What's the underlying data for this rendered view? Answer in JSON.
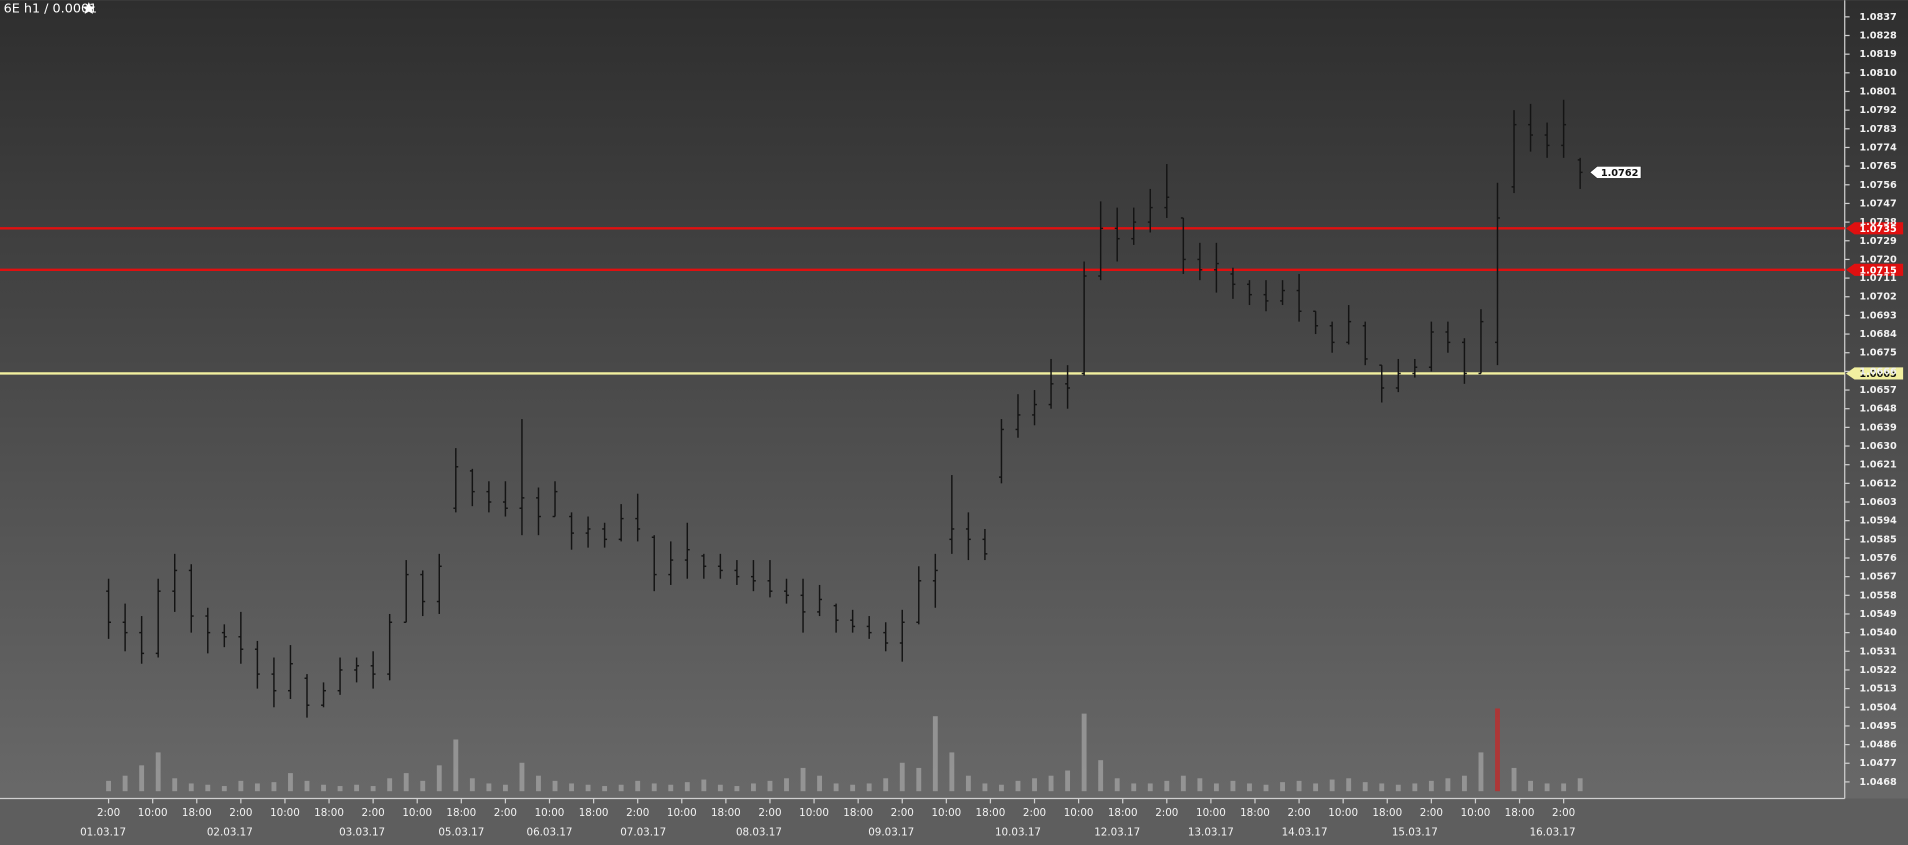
{
  "chart_data": {
    "type": "ohlc",
    "title": "6E h1 / 0.0001",
    "xlim": [
      -17.7,
      317
    ],
    "ylim": [
      1.046,
      1.0845
    ],
    "yticks": [
      1.0837,
      1.0828,
      1.0819,
      {
        "value": 1.081,
        "label": "1.0810"
      },
      1.0801,
      1.0792,
      1.0783,
      1.0774,
      1.0765,
      1.0756,
      1.0747,
      1.0738,
      1.0729,
      {
        "value": 1.072,
        "label": "1.0720"
      },
      1.0711,
      1.0702,
      1.0693,
      1.0684,
      1.0675,
      1.0666,
      1.0657,
      1.0648,
      1.0639,
      {
        "value": 1.063,
        "label": "1.0630"
      },
      1.0621,
      1.0612,
      1.0603,
      1.0594,
      1.0585,
      1.0576,
      1.0567,
      1.0558,
      1.0549,
      {
        "value": 1.054,
        "label": "1.0540"
      },
      1.0531,
      1.0522,
      1.0513,
      1.0504,
      1.0495,
      1.0486,
      1.0477,
      1.0468
    ],
    "xticks": [
      {
        "value": 2,
        "label": "2:00"
      },
      {
        "value": 10,
        "label": "10:00"
      },
      {
        "value": 18,
        "label": "18:00"
      },
      {
        "value": 26,
        "label": "2:00"
      },
      {
        "value": 34,
        "label": "10:00"
      },
      {
        "value": 42,
        "label": "18:00"
      },
      {
        "value": 50,
        "label": "2:00"
      },
      {
        "value": 58,
        "label": "10:00"
      },
      {
        "value": 66,
        "label": "18:00"
      },
      {
        "value": 74,
        "label": "2:00"
      },
      {
        "value": 82,
        "label": "10:00"
      },
      {
        "value": 90,
        "label": "18:00"
      },
      {
        "value": 98,
        "label": "2:00"
      },
      {
        "value": 106,
        "label": "10:00"
      },
      {
        "value": 114,
        "label": "18:00"
      },
      {
        "value": 122,
        "label": "2:00"
      },
      {
        "value": 130,
        "label": "10:00"
      },
      {
        "value": 138,
        "label": "18:00"
      },
      {
        "value": 146,
        "label": "2:00"
      },
      {
        "value": 154,
        "label": "10:00"
      },
      {
        "value": 162,
        "label": "18:00"
      },
      {
        "value": 170,
        "label": "2:00"
      },
      {
        "value": 178,
        "label": "10:00"
      },
      {
        "value": 186,
        "label": "18:00"
      },
      {
        "value": 194,
        "label": "2:00"
      },
      {
        "value": 202,
        "label": "10:00"
      },
      {
        "value": 210,
        "label": "18:00"
      },
      {
        "value": 218,
        "label": "2:00"
      },
      {
        "value": 226,
        "label": "10:00"
      },
      {
        "value": 234,
        "label": "18:00"
      },
      {
        "value": 242,
        "label": "2:00"
      },
      {
        "value": 250,
        "label": "10:00"
      },
      {
        "value": 258,
        "label": "18:00"
      },
      {
        "value": 266,
        "label": "2:00"
      }
    ],
    "date_ticks": [
      {
        "value": 1,
        "label": "01.03.17"
      },
      {
        "value": 24,
        "label": "02.03.17"
      },
      {
        "value": 48,
        "label": "03.03.17"
      },
      {
        "value": 66,
        "label": "05.03.17"
      },
      {
        "value": 82,
        "label": "06.03.17"
      },
      {
        "value": 99,
        "label": "07.03.17"
      },
      {
        "value": 120,
        "label": "08.03.17"
      },
      {
        "value": 144,
        "label": "09.03.17"
      },
      {
        "value": 167,
        "label": "10.03.17"
      },
      {
        "value": 185,
        "label": "12.03.17"
      },
      {
        "value": 202,
        "label": "13.03.17"
      },
      {
        "value": 219,
        "label": "14.03.17"
      },
      {
        "value": 239,
        "label": "15.03.17"
      },
      {
        "value": 264,
        "label": "16.03.17"
      }
    ],
    "bar_color": "#141414",
    "x": [
      2,
      5,
      8,
      11,
      14,
      17,
      20,
      23,
      26,
      29,
      32,
      35,
      38,
      41,
      44,
      47,
      50,
      53,
      56,
      59,
      62,
      65,
      68,
      71,
      74,
      77,
      80,
      83,
      86,
      89,
      92,
      95,
      98,
      101,
      104,
      107,
      110,
      113,
      116,
      119,
      122,
      125,
      128,
      131,
      134,
      137,
      140,
      143,
      146,
      149,
      152,
      155,
      158,
      161,
      164,
      167,
      170,
      173,
      176,
      179,
      182,
      185,
      188,
      191,
      194,
      197,
      200,
      203,
      206,
      209,
      212,
      215,
      218,
      221,
      224,
      227,
      230,
      233,
      236,
      239,
      242,
      245,
      248,
      251,
      254,
      257,
      260,
      263,
      266,
      269
    ],
    "open": [
      1.056,
      1.0545,
      1.054,
      1.053,
      1.056,
      1.057,
      1.0548,
      1.054,
      1.0538,
      1.0532,
      1.052,
      1.0512,
      1.0518,
      1.0505,
      1.0512,
      1.0522,
      1.0524,
      1.052,
      1.0545,
      1.0568,
      1.0555,
      1.06,
      1.0618,
      1.0608,
      1.0603,
      1.06,
      1.0605,
      1.0596,
      1.0596,
      1.0588,
      1.059,
      1.0585,
      1.0595,
      1.0586,
      1.0568,
      1.0575,
      1.0577,
      1.0572,
      1.057,
      1.0567,
      1.0565,
      1.056,
      1.0558,
      1.055,
      1.0553,
      1.0546,
      1.0543,
      1.054,
      1.0535,
      1.0545,
      1.0565,
      1.0585,
      1.059,
      1.0585,
      1.0615,
      1.0638,
      1.0645,
      1.065,
      1.066,
      1.0665,
      1.0712,
      1.0735,
      1.073,
      1.0738,
      1.0745,
      1.074,
      1.072,
      1.0715,
      1.0713,
      1.0708,
      1.0703,
      1.07,
      1.0705,
      1.0695,
      1.0688,
      1.068,
      1.0688,
      1.0669,
      1.0658,
      1.0665,
      1.0668,
      1.0685,
      1.068,
      1.0665,
      1.068,
      1.0755,
      1.0785,
      1.078,
      1.0775,
      1.0768
    ],
    "high": [
      1.0566,
      1.0554,
      1.0548,
      1.0566,
      1.0578,
      1.0573,
      1.0552,
      1.0544,
      1.055,
      1.0536,
      1.0528,
      1.0534,
      1.052,
      1.0516,
      1.0528,
      1.0528,
      1.0531,
      1.0549,
      1.0575,
      1.057,
      1.0578,
      1.0629,
      1.0619,
      1.0613,
      1.0613,
      1.0643,
      1.061,
      1.0613,
      1.0598,
      1.0596,
      1.0593,
      1.0602,
      1.0607,
      1.0587,
      1.0584,
      1.0593,
      1.0578,
      1.0578,
      1.0575,
      1.0575,
      1.0575,
      1.0566,
      1.0566,
      1.0563,
      1.0554,
      1.0551,
      1.0548,
      1.0545,
      1.0551,
      1.0572,
      1.0578,
      1.0616,
      1.0598,
      1.059,
      1.0643,
      1.0655,
      1.0657,
      1.0672,
      1.0669,
      1.0719,
      1.0748,
      1.0745,
      1.0745,
      1.0754,
      1.0766,
      1.074,
      1.0728,
      1.0728,
      1.0716,
      1.071,
      1.071,
      1.071,
      1.0713,
      1.0695,
      1.069,
      1.0698,
      1.069,
      1.0669,
      1.0672,
      1.0672,
      1.069,
      1.069,
      1.0682,
      1.0696,
      1.0757,
      1.0792,
      1.0795,
      1.0786,
      1.0797,
      1.0769
    ],
    "low": [
      1.0537,
      1.0531,
      1.0525,
      1.0528,
      1.055,
      1.054,
      1.053,
      1.0533,
      1.0525,
      1.0513,
      1.0504,
      1.0508,
      1.0499,
      1.0504,
      1.051,
      1.0516,
      1.0513,
      1.0517,
      1.0545,
      1.0548,
      1.0549,
      1.0598,
      1.0601,
      1.0598,
      1.0596,
      1.0587,
      1.0587,
      1.0596,
      1.058,
      1.0581,
      1.0581,
      1.0584,
      1.0584,
      1.056,
      1.0563,
      1.0566,
      1.0566,
      1.0566,
      1.0563,
      1.056,
      1.0557,
      1.0554,
      1.054,
      1.0548,
      1.054,
      1.054,
      1.0537,
      1.0531,
      1.0526,
      1.0544,
      1.0552,
      1.0578,
      1.0575,
      1.0575,
      1.0612,
      1.0634,
      1.064,
      1.0648,
      1.0648,
      1.0664,
      1.071,
      1.0719,
      1.0727,
      1.0733,
      1.074,
      1.0713,
      1.071,
      1.0704,
      1.0701,
      1.0698,
      1.0695,
      1.0698,
      1.069,
      1.0684,
      1.0675,
      1.0679,
      1.0669,
      1.0651,
      1.0656,
      1.0663,
      1.0666,
      1.0675,
      1.066,
      1.0665,
      1.0669,
      1.0752,
      1.0772,
      1.0769,
      1.0769,
      1.0754
    ],
    "close": [
      1.0545,
      1.054,
      1.053,
      1.056,
      1.057,
      1.0548,
      1.054,
      1.0538,
      1.0532,
      1.052,
      1.0512,
      1.0525,
      1.0505,
      1.0512,
      1.0522,
      1.0524,
      1.052,
      1.0545,
      1.0568,
      1.0555,
      1.0572,
      1.062,
      1.0608,
      1.0603,
      1.06,
      1.0605,
      1.0596,
      1.0608,
      1.0588,
      1.059,
      1.0585,
      1.0595,
      1.059,
      1.0568,
      1.0575,
      1.058,
      1.0572,
      1.057,
      1.0567,
      1.0565,
      1.056,
      1.0558,
      1.055,
      1.0556,
      1.0546,
      1.0543,
      1.054,
      1.0535,
      1.0545,
      1.0565,
      1.057,
      1.059,
      1.0585,
      1.0578,
      1.0638,
      1.0645,
      1.065,
      1.066,
      1.0658,
      1.0712,
      1.0735,
      1.073,
      1.0738,
      1.0745,
      1.075,
      1.072,
      1.0715,
      1.0718,
      1.0708,
      1.0703,
      1.07,
      1.0705,
      1.0695,
      1.0688,
      1.068,
      1.069,
      1.0672,
      1.0658,
      1.0665,
      1.0668,
      1.0685,
      1.068,
      1.0665,
      1.069,
      1.074,
      1.0785,
      1.078,
      1.0775,
      1.0785,
      1.0762
    ],
    "volume": {
      "color": "#a3a3a3",
      "max_color": "#b53232",
      "values": [
        8,
        12,
        20,
        30,
        10,
        6,
        5,
        4,
        8,
        6,
        7,
        14,
        8,
        5,
        4,
        5,
        4,
        10,
        14,
        8,
        20,
        40,
        10,
        6,
        5,
        22,
        12,
        8,
        6,
        5,
        4,
        5,
        8,
        6,
        5,
        7,
        9,
        5,
        4,
        6,
        8,
        10,
        18,
        12,
        6,
        5,
        6,
        10,
        22,
        18,
        58,
        30,
        12,
        6,
        5,
        8,
        10,
        12,
        16,
        60,
        24,
        10,
        6,
        6,
        8,
        12,
        10,
        6,
        8,
        6,
        5,
        7,
        8,
        6,
        9,
        10,
        7,
        6,
        5,
        6,
        8,
        10,
        12,
        30,
        64,
        18,
        8,
        6,
        6,
        10
      ]
    },
    "levels": [
      {
        "value": 1.0735,
        "color": "#e01010"
      },
      {
        "value": 1.0715,
        "color": "#e01010"
      },
      {
        "value": 1.0665,
        "color": "#f2f0a0"
      }
    ],
    "last_price": 1.0762
  }
}
